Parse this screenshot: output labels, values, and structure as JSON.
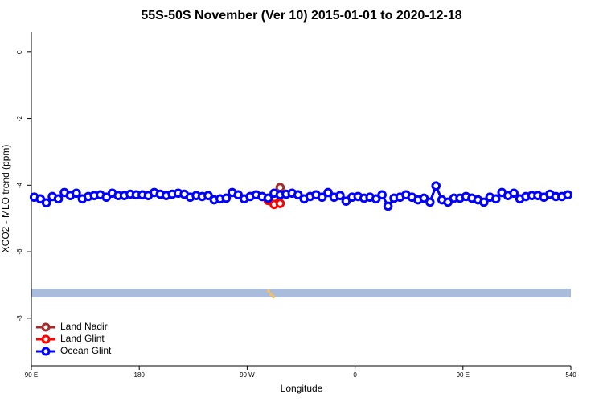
{
  "chart_data": {
    "type": "line",
    "title": "55S-50S November (Ver 10)   2015-01-01 to 2020-12-18",
    "xlabel": "Longitude",
    "ylabel": "XCO2 - MLO trend (ppm)",
    "xlim": [
      90,
      540
    ],
    "ylim": [
      -9.43,
      0.6
    ],
    "xticks": [
      {
        "value": 90,
        "label": "90 E"
      },
      180,
      {
        "value": 270,
        "label": "90 W"
      },
      {
        "value": 360,
        "label": "0"
      },
      {
        "value": 450,
        "label": "90 E"
      },
      540
    ],
    "yticks": [
      0,
      -2,
      -4,
      -6,
      -8
    ],
    "legend": "lower left",
    "series": [
      {
        "name": "Land Nadir",
        "color": "#a52a2a",
        "x": [
          292.5,
          297.5
        ],
        "values": [
          -4.38,
          -4.07
        ]
      },
      {
        "name": "Land Glint",
        "color": "#ff0000",
        "x": [
          287.5,
          292.5,
          297.5
        ],
        "values": [
          -4.46,
          -4.58,
          -4.55
        ]
      },
      {
        "name": "Ocean Glint",
        "color": "#0000ff",
        "x": [
          92.5,
          97.5,
          102.5,
          107.5,
          112.5,
          117.5,
          122.5,
          127.5,
          132.5,
          137.5,
          142.5,
          147.5,
          152.5,
          157.5,
          162.5,
          167.5,
          172.5,
          177.5,
          182.5,
          187.5,
          192.5,
          197.5,
          202.5,
          207.5,
          212.5,
          217.5,
          222.5,
          227.5,
          232.5,
          237.5,
          242.5,
          247.5,
          252.5,
          257.5,
          262.5,
          267.5,
          272.5,
          277.5,
          282.5,
          287.5,
          292.5,
          297.5,
          302.5,
          307.5,
          312.5,
          317.5,
          322.5,
          327.5,
          332.5,
          337.5,
          342.5,
          347.5,
          352.5,
          357.5,
          362.5,
          367.5,
          372.5,
          377.5,
          382.5,
          387.5,
          392.5,
          397.5,
          402.5,
          407.5,
          412.5,
          417.5,
          422.5,
          427.5,
          432.5,
          437.5,
          442.5,
          447.5,
          452.5,
          457.5,
          462.5,
          467.5,
          472.5,
          477.5,
          482.5,
          487.5,
          492.5,
          497.5,
          502.5,
          507.5,
          512.5,
          517.5,
          522.5,
          527.5,
          532.5,
          537.5
        ],
        "values": [
          -4.36,
          -4.41,
          -4.53,
          -4.34,
          -4.41,
          -4.22,
          -4.31,
          -4.24,
          -4.41,
          -4.34,
          -4.31,
          -4.29,
          -4.36,
          -4.24,
          -4.31,
          -4.31,
          -4.27,
          -4.29,
          -4.29,
          -4.31,
          -4.22,
          -4.27,
          -4.31,
          -4.27,
          -4.24,
          -4.27,
          -4.36,
          -4.31,
          -4.34,
          -4.31,
          -4.44,
          -4.41,
          -4.39,
          -4.22,
          -4.29,
          -4.41,
          -4.34,
          -4.29,
          -4.34,
          -4.39,
          -4.24,
          -4.29,
          -4.27,
          -4.24,
          -4.29,
          -4.41,
          -4.34,
          -4.29,
          -4.36,
          -4.22,
          -4.36,
          -4.31,
          -4.48,
          -4.36,
          -4.34,
          -4.39,
          -4.36,
          -4.41,
          -4.29,
          -4.63,
          -4.39,
          -4.36,
          -4.29,
          -4.36,
          -4.44,
          -4.39,
          -4.51,
          -4.02,
          -4.44,
          -4.51,
          -4.39,
          -4.39,
          -4.34,
          -4.39,
          -4.44,
          -4.51,
          -4.36,
          -4.41,
          -4.22,
          -4.31,
          -4.24,
          -4.41,
          -4.34,
          -4.31,
          -4.31,
          -4.36,
          -4.27,
          -4.34,
          -4.34,
          -4.29
        ]
      }
    ]
  }
}
